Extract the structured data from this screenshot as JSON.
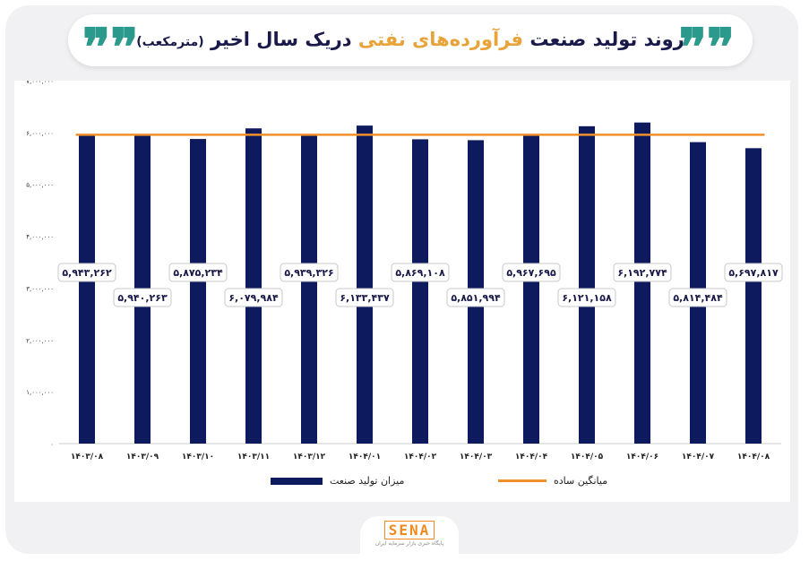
{
  "header": {
    "title_main": "روند تولید صنعت",
    "title_accent": "فرآورده‌های نفتی",
    "title_tail": "دریک سال اخیر",
    "title_unit": "(مترمکعب)",
    "quote_glyph": "❞❞"
  },
  "logo": {
    "name": "SENA",
    "subtitle": "پایگاه خبری بازار سرمایه ایران"
  },
  "legend": {
    "bar_label": "میزان تولید صنعت",
    "line_label": "میانگین ساده"
  },
  "colors": {
    "bar": "#0d1a5e",
    "average_line": "#f0902a",
    "accent": "#e8a33a",
    "quote": "#2b9a8c"
  },
  "chart_data": {
    "type": "bar",
    "categories": [
      "۱۴۰۳/۰۸",
      "۱۴۰۳/۰۹",
      "۱۴۰۳/۱۰",
      "۱۴۰۳/۱۱",
      "۱۴۰۳/۱۲",
      "۱۴۰۴/۰۱",
      "۱۴۰۴/۰۲",
      "۱۴۰۴/۰۳",
      "۱۴۰۴/۰۴",
      "۱۴۰۴/۰۵",
      "۱۴۰۴/۰۶",
      "۱۴۰۴/۰۷",
      "۱۴۰۴/۰۸"
    ],
    "series": [
      {
        "name": "میزان تولید صنعت",
        "values": [
          5943262,
          5940263,
          5875234,
          6079984,
          5939326,
          6133437,
          5869108,
          5851994,
          5967695,
          6121158,
          6192774,
          5814484,
          5697817
        ],
        "labels": [
          "۵,۹۴۳,۲۶۲",
          "۵,۹۴۰,۲۶۳",
          "۵,۸۷۵,۲۳۴",
          "۶,۰۷۹,۹۸۴",
          "۵,۹۳۹,۳۲۶",
          "۶,۱۳۳,۴۳۷",
          "۵,۸۶۹,۱۰۸",
          "۵,۸۵۱,۹۹۴",
          "۵,۹۶۷,۶۹۵",
          "۶,۱۲۱,۱۵۸",
          "۶,۱۹۲,۷۷۴",
          "۵,۸۱۴,۴۸۴",
          "۵,۶۹۷,۸۱۷"
        ]
      }
    ],
    "average": 5955880,
    "average_name": "میانگین ساده",
    "ylim": [
      0,
      7000000
    ],
    "yticks": [
      0,
      1000000,
      2000000,
      3000000,
      4000000,
      5000000,
      6000000,
      7000000
    ],
    "ytick_labels": [
      "۰",
      "۱,۰۰۰,۰۰۰",
      "۲,۰۰۰,۰۰۰",
      "۳,۰۰۰,۰۰۰",
      "۴,۰۰۰,۰۰۰",
      "۵,۰۰۰,۰۰۰",
      "۶,۰۰۰,۰۰۰",
      "۷,۰۰۰,۰۰۰"
    ],
    "grid": false,
    "legend_position": "bottom"
  }
}
